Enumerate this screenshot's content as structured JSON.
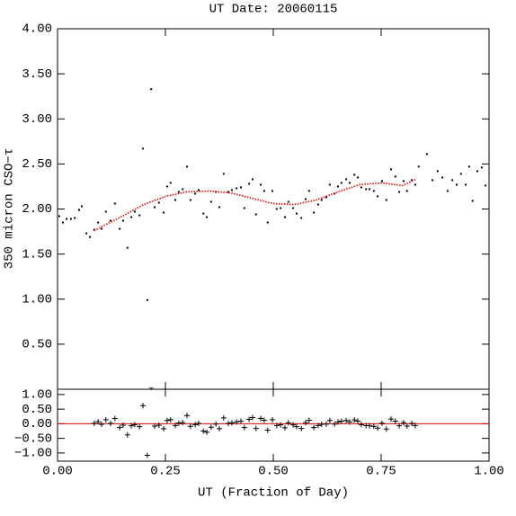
{
  "chart_data": [
    {
      "type": "scatter",
      "title": "UT Date: 20060115",
      "ylabel": "350 micron CSO−τ",
      "color": "#000000",
      "xlim": [
        0,
        1
      ],
      "xticks": [
        0,
        0.25,
        0.5,
        0.75,
        1
      ],
      "ylim": [
        0,
        4
      ],
      "yticks": [
        {
          "value": 0.5,
          "label": "0.50"
        },
        {
          "value": 1,
          "label": "1.00"
        },
        {
          "value": 1.5,
          "label": "1.50"
        },
        {
          "value": 2,
          "label": "2.00"
        },
        {
          "value": 2.5,
          "label": "2.50"
        },
        {
          "value": 3,
          "label": "3.00"
        },
        {
          "value": 3.5,
          "label": "3.50"
        },
        {
          "value": 4,
          "label": "4.00"
        }
      ],
      "x": [
        0.004,
        0.0125,
        0.021,
        0.031,
        0.04,
        0.05,
        0.056,
        0.067,
        0.075,
        0.085,
        0.094,
        0.102,
        0.112,
        0.123,
        0.133,
        0.144,
        0.152,
        0.162,
        0.171,
        0.179,
        0.19,
        0.198,
        0.208,
        0.217,
        0.225,
        0.235,
        0.246,
        0.254,
        0.262,
        0.273,
        0.281,
        0.29,
        0.3,
        0.308,
        0.319,
        0.327,
        0.338,
        0.346,
        0.356,
        0.367,
        0.375,
        0.385,
        0.396,
        0.404,
        0.415,
        0.425,
        0.433,
        0.444,
        0.452,
        0.46,
        0.471,
        0.479,
        0.487,
        0.498,
        0.508,
        0.517,
        0.527,
        0.535,
        0.546,
        0.554,
        0.565,
        0.575,
        0.583,
        0.594,
        0.604,
        0.612,
        0.623,
        0.631,
        0.642,
        0.65,
        0.658,
        0.669,
        0.677,
        0.688,
        0.696,
        0.704,
        0.715,
        0.723,
        0.733,
        0.742,
        0.752,
        0.762,
        0.773,
        0.783,
        0.792,
        0.802,
        0.81,
        0.821,
        0.829,
        0.837,
        0.856,
        0.869,
        0.881,
        0.892,
        0.904,
        0.915,
        0.925,
        0.935,
        0.946,
        0.954,
        0.962,
        0.973,
        0.983,
        0.992
      ],
      "values": [
        1.92,
        1.85,
        1.89,
        1.89,
        1.9,
        1.99,
        2.03,
        1.73,
        1.69,
        1.77,
        1.85,
        1.78,
        1.97,
        1.87,
        2.06,
        1.78,
        1.87,
        1.57,
        1.91,
        1.97,
        1.93,
        2.67,
        0.99,
        3.33,
        2.02,
        2.07,
        1.96,
        2.25,
        2.29,
        2.1,
        2.19,
        2.22,
        2.47,
        2.1,
        2.17,
        2.21,
        1.95,
        1.91,
        2.08,
        2.19,
        2.02,
        2.39,
        2.19,
        2.21,
        2.23,
        2.24,
        2.01,
        2.28,
        2.33,
        1.94,
        2.27,
        2.2,
        1.85,
        2.2,
        2.0,
        2.01,
        1.91,
        2.08,
        2.01,
        1.95,
        1.9,
        2.11,
        2.2,
        1.96,
        2.05,
        2.1,
        2.13,
        2.27,
        2.17,
        2.25,
        2.29,
        2.33,
        2.29,
        2.38,
        2.35,
        2.24,
        2.22,
        2.22,
        2.2,
        2.14,
        2.31,
        2.1,
        2.44,
        2.36,
        2.19,
        2.31,
        2.2,
        2.32,
        2.27,
        2.47,
        2.61,
        2.32,
        2.42,
        2.35,
        2.2,
        2.32,
        2.27,
        2.39,
        2.27,
        2.47,
        2.09,
        2.42,
        2.46,
        2.26
      ],
      "fit": {
        "color": "#e00000",
        "x": [
          0.085,
          0.15,
          0.2,
          0.25,
          0.3,
          0.35,
          0.4,
          0.45,
          0.5,
          0.55,
          0.6,
          0.65,
          0.7,
          0.75,
          0.8,
          0.83
        ],
        "values": [
          1.76,
          1.92,
          2.05,
          2.14,
          2.19,
          2.2,
          2.18,
          2.12,
          2.06,
          2.05,
          2.1,
          2.19,
          2.27,
          2.29,
          2.26,
          2.33
        ]
      }
    },
    {
      "type": "residual",
      "xlabel": "UT (Fraction of Day)",
      "color": "#000000",
      "xlim": [
        0,
        1
      ],
      "xticks": [
        {
          "value": 0,
          "label": "0.00"
        },
        0.25,
        {
          "value": 0.5,
          "label": "0.50"
        },
        0.75,
        {
          "value": 1,
          "label": "1.00"
        }
      ],
      "ylim": [
        -1.28,
        1.18
      ],
      "yticks": [
        {
          "value": -1,
          "label": "−1.00"
        },
        {
          "value": -0.5,
          "label": "−0.50"
        },
        {
          "value": 0,
          "label": "0.00"
        },
        {
          "value": 0.5,
          "label": "0.50"
        },
        {
          "value": 1,
          "label": "1.00"
        }
      ],
      "hline": {
        "value": 0,
        "color": "#e00000"
      },
      "x": [
        0.085,
        0.094,
        0.102,
        0.112,
        0.123,
        0.133,
        0.144,
        0.152,
        0.162,
        0.171,
        0.179,
        0.19,
        0.198,
        0.208,
        0.217,
        0.225,
        0.235,
        0.246,
        0.254,
        0.262,
        0.273,
        0.281,
        0.29,
        0.3,
        0.308,
        0.319,
        0.327,
        0.338,
        0.346,
        0.356,
        0.367,
        0.375,
        0.385,
        0.396,
        0.404,
        0.415,
        0.425,
        0.433,
        0.444,
        0.452,
        0.46,
        0.471,
        0.479,
        0.487,
        0.498,
        0.508,
        0.517,
        0.527,
        0.535,
        0.546,
        0.554,
        0.565,
        0.575,
        0.583,
        0.594,
        0.604,
        0.612,
        0.623,
        0.631,
        0.642,
        0.65,
        0.658,
        0.669,
        0.677,
        0.688,
        0.696,
        0.704,
        0.715,
        0.723,
        0.733,
        0.742,
        0.752,
        0.762,
        0.773,
        0.783,
        0.792,
        0.802,
        0.81,
        0.821,
        0.829
      ],
      "values": [
        0.01,
        0.07,
        -0.02,
        0.14,
        0.01,
        0.18,
        -0.13,
        -0.05,
        -0.38,
        -0.07,
        -0.03,
        -0.1,
        0.62,
        -1.08,
        1.24,
        -0.08,
        -0.05,
        -0.17,
        0.11,
        0.14,
        -0.06,
        0.02,
        0.04,
        0.28,
        -0.09,
        -0.03,
        0.01,
        -0.25,
        -0.29,
        -0.12,
        -0.01,
        -0.17,
        0.2,
        0.01,
        0.03,
        0.06,
        0.09,
        -0.13,
        0.15,
        0.21,
        -0.16,
        0.18,
        0.12,
        -0.22,
        0.14,
        -0.06,
        -0.04,
        -0.14,
        0.03,
        -0.04,
        -0.1,
        -0.16,
        0.04,
        0.12,
        -0.13,
        -0.06,
        -0.02,
        -0.01,
        0.11,
        -0.01,
        0.06,
        0.09,
        0.11,
        0.06,
        0.13,
        0.09,
        -0.03,
        -0.06,
        -0.07,
        -0.09,
        -0.15,
        0.02,
        -0.18,
        0.16,
        0.09,
        -0.07,
        0.04,
        -0.08,
        0.01,
        -0.06
      ]
    }
  ]
}
